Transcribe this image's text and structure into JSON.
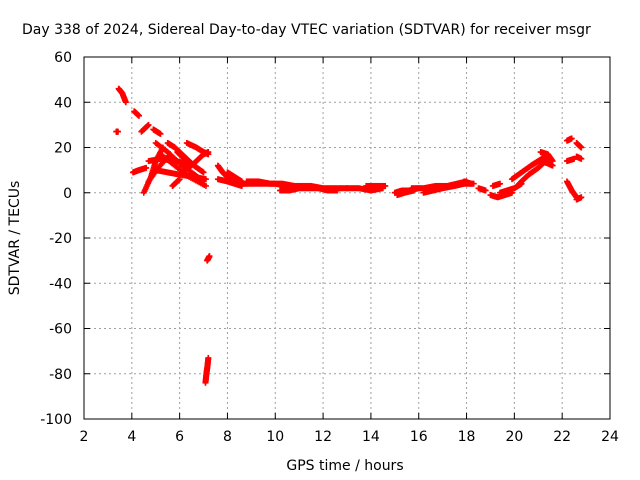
{
  "chart_data": {
    "type": "scatter",
    "title": "Day 338 of 2024, Sidereal Day-to-day VTEC variation (SDTVAR) for receiver msgr",
    "xlabel": "GPS time / hours",
    "ylabel": "SDTVAR / TECUs",
    "xlim": [
      2,
      24
    ],
    "ylim": [
      -100,
      60
    ],
    "xticks": [
      "2",
      "4",
      "6",
      "8",
      "10",
      "12",
      "14",
      "16",
      "18",
      "20",
      "22",
      "24"
    ],
    "yticks": [
      "60",
      "40",
      "20",
      "0",
      "-20",
      "-40",
      "-60",
      "-80",
      "-100"
    ],
    "grid": true,
    "marker": "+",
    "color": "#ff0000",
    "segments": [
      {
        "x": [
          3.35,
          3.42
        ],
        "y": [
          27,
          27
        ]
      },
      {
        "x": [
          3.45,
          3.6,
          3.75
        ],
        "y": [
          46,
          44,
          40
        ]
      },
      {
        "x": [
          4.1,
          4.3
        ],
        "y": [
          36,
          34
        ]
      },
      {
        "x": [
          4.05,
          4.3,
          4.6
        ],
        "y": [
          9,
          10,
          11
        ]
      },
      {
        "x": [
          4.4,
          4.7
        ],
        "y": [
          27,
          30
        ]
      },
      {
        "x": [
          4.5,
          4.8,
          5.0,
          5.3
        ],
        "y": [
          0,
          7,
          14,
          20
        ]
      },
      {
        "x": [
          4.7,
          5.1,
          5.6
        ],
        "y": [
          5,
          11,
          17
        ]
      },
      {
        "x": [
          4.9,
          5.2
        ],
        "y": [
          28,
          26
        ]
      },
      {
        "x": [
          5.0,
          5.5,
          6.0,
          6.5,
          7.0
        ],
        "y": [
          22,
          18,
          13,
          9,
          5
        ]
      },
      {
        "x": [
          5.2,
          5.8,
          6.4,
          7.1
        ],
        "y": [
          17,
          12,
          7,
          3
        ]
      },
      {
        "x": [
          4.7,
          5.2,
          5.8,
          6.3
        ],
        "y": [
          14,
          15,
          14,
          13
        ]
      },
      {
        "x": [
          5.0,
          5.5,
          6.0,
          6.6,
          7.1
        ],
        "y": [
          10,
          9,
          8,
          7,
          6
        ]
      },
      {
        "x": [
          5.5,
          5.8,
          6.2,
          6.6,
          7.0
        ],
        "y": [
          22,
          20,
          16,
          12,
          9
        ]
      },
      {
        "x": [
          5.7,
          6.0
        ],
        "y": [
          3,
          6
        ]
      },
      {
        "x": [
          5.9,
          6.2,
          6.5
        ],
        "y": [
          18,
          15,
          12
        ]
      },
      {
        "x": [
          6.2,
          6.6,
          7.0,
          7.2
        ],
        "y": [
          10,
          13,
          17,
          18
        ]
      },
      {
        "x": [
          6.3,
          6.7,
          7.0,
          7.2
        ],
        "y": [
          22,
          20,
          18,
          17
        ]
      },
      {
        "x": [
          7.15,
          7.25
        ],
        "y": [
          -30,
          -28
        ]
      },
      {
        "x": [
          7.08,
          7.12,
          7.16,
          7.2
        ],
        "y": [
          -84,
          -80,
          -77,
          -73
        ]
      },
      {
        "x": [
          7.6,
          7.8,
          8.0,
          8.3
        ],
        "y": [
          12,
          9,
          7,
          5
        ]
      },
      {
        "x": [
          7.6,
          8.0,
          8.3,
          8.6
        ],
        "y": [
          6,
          5,
          4,
          3
        ]
      },
      {
        "x": [
          8.0,
          8.3,
          8.6
        ],
        "y": [
          9,
          7,
          5
        ]
      },
      {
        "x": [
          8.6,
          9.0,
          9.5,
          10.0,
          10.5,
          11.0,
          11.5,
          12.0,
          12.5,
          13.0
        ],
        "y": [
          4,
          4,
          4,
          4,
          3,
          3,
          3,
          2,
          2,
          2
        ]
      },
      {
        "x": [
          8.8,
          9.3,
          9.8,
          10.3,
          10.8
        ],
        "y": [
          5,
          5,
          4,
          4,
          3
        ]
      },
      {
        "x": [
          10.2,
          10.6,
          11.0,
          11.4,
          11.8,
          12.2,
          12.6
        ],
        "y": [
          1,
          1,
          2,
          2,
          2,
          1,
          1
        ]
      },
      {
        "x": [
          13.0,
          13.5,
          14.0,
          14.5
        ],
        "y": [
          2,
          2,
          1,
          2
        ]
      },
      {
        "x": [
          13.8,
          14.2,
          14.6
        ],
        "y": [
          3,
          3,
          3
        ]
      },
      {
        "x": [
          15.0,
          15.3,
          15.6,
          16.0
        ],
        "y": [
          0,
          1,
          1,
          2
        ]
      },
      {
        "x": [
          15.1,
          15.4,
          15.8
        ],
        "y": [
          -1,
          0,
          1
        ]
      },
      {
        "x": [
          15.7,
          16.2,
          16.7,
          17.2,
          17.6,
          18.0
        ],
        "y": [
          2,
          2,
          3,
          3,
          4,
          5
        ]
      },
      {
        "x": [
          16.2,
          16.6,
          17.0,
          17.5,
          17.9,
          18.3
        ],
        "y": [
          0,
          1,
          2,
          3,
          4,
          4
        ]
      },
      {
        "x": [
          17.9,
          18.2
        ],
        "y": [
          5,
          4
        ]
      },
      {
        "x": [
          18.5,
          18.8
        ],
        "y": [
          2,
          1
        ]
      },
      {
        "x": [
          19.0,
          19.3,
          19.6,
          19.9
        ],
        "y": [
          -1,
          -2,
          -1,
          0
        ]
      },
      {
        "x": [
          19.1,
          19.4
        ],
        "y": [
          3,
          4
        ]
      },
      {
        "x": [
          19.4,
          19.7,
          20.0,
          20.3
        ],
        "y": [
          0,
          1,
          2,
          4
        ]
      },
      {
        "x": [
          19.9,
          20.3,
          20.7,
          21.0,
          21.3
        ],
        "y": [
          6,
          9,
          12,
          14,
          16
        ]
      },
      {
        "x": [
          20.2,
          20.6,
          21.0,
          21.4
        ],
        "y": [
          4,
          8,
          11,
          15
        ]
      },
      {
        "x": [
          21.1,
          21.4,
          21.6
        ],
        "y": [
          18,
          17,
          14
        ]
      },
      {
        "x": [
          21.1,
          21.4,
          21.6
        ],
        "y": [
          14,
          13,
          12
        ]
      },
      {
        "x": [
          22.2,
          22.4
        ],
        "y": [
          23,
          24
        ]
      },
      {
        "x": [
          22.2,
          22.5
        ],
        "y": [
          14,
          15
        ]
      },
      {
        "x": [
          22.2,
          22.4,
          22.6
        ],
        "y": [
          5,
          1,
          -2
        ]
      },
      {
        "x": [
          22.6,
          22.8
        ],
        "y": [
          22,
          20
        ]
      },
      {
        "x": [
          22.6,
          22.8
        ],
        "y": [
          16,
          15
        ]
      },
      {
        "x": [
          22.6,
          22.8
        ],
        "y": [
          -3,
          -2
        ]
      }
    ]
  }
}
